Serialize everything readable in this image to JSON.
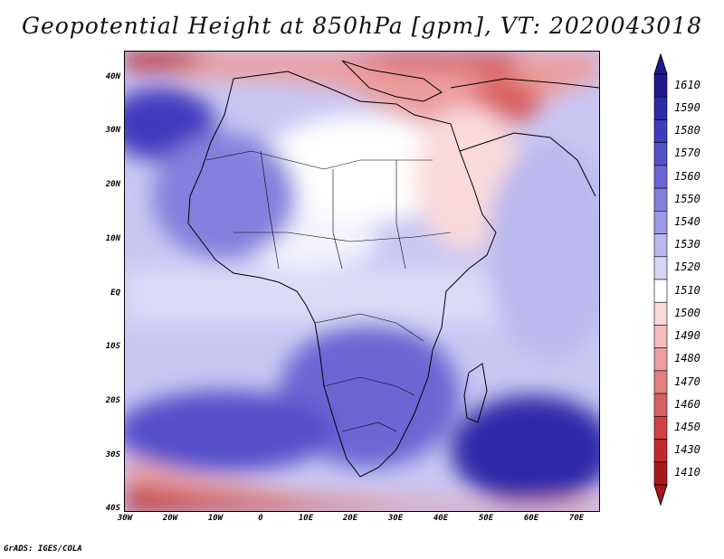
{
  "title": "Geopotential Height at 850hPa [gpm], VT: 2020043018",
  "credit": "GrADS: IGES/COLA",
  "axes": {
    "lat_labels": [
      "40N",
      "30N",
      "20N",
      "10N",
      "EQ",
      "10S",
      "20S",
      "30S",
      "40S"
    ],
    "lon_labels": [
      "30W",
      "20W",
      "10W",
      "0",
      "10E",
      "20E",
      "30E",
      "40E",
      "50E",
      "60E",
      "70E"
    ]
  },
  "colorbar": {
    "levels": [
      "1610",
      "1590",
      "1580",
      "1570",
      "1560",
      "1550",
      "1540",
      "1530",
      "1520",
      "1510",
      "1500",
      "1490",
      "1480",
      "1470",
      "1460",
      "1450",
      "1430",
      "1410"
    ],
    "colors": [
      "#1e1a8c",
      "#2e2aa8",
      "#3f3bbd",
      "#5450c9",
      "#6a66d3",
      "#8480dd",
      "#9e9be6",
      "#bab8ee",
      "#d6d5f6",
      "#ffffff",
      "#fadadb",
      "#f3bdbe",
      "#eb9e9f",
      "#e37f81",
      "#d96062",
      "#cf4244",
      "#c02a2c",
      "#a8161a"
    ]
  },
  "map_colors": {
    "high": "#2e2aa8",
    "mid_high": "#6a66d3",
    "mid": "#9e9be6",
    "low_mid": "#d6d5f6",
    "neutral": "#ffffff",
    "low": "#eb9e9f",
    "very_low": "#c02a2c"
  }
}
